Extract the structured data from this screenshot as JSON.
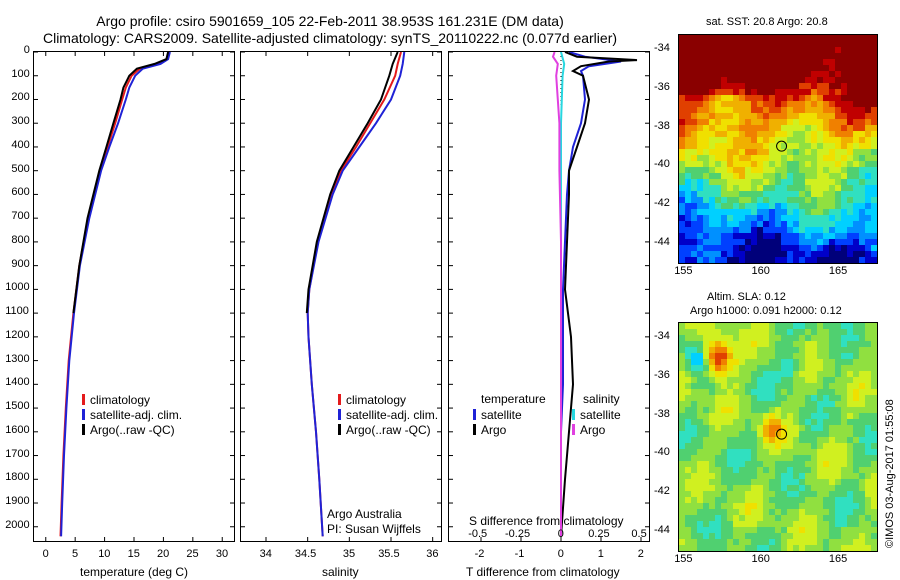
{
  "titles": {
    "line1": "Argo profile: csiro 5901659_105 22-Feb-2011 38.953S 161.231E (DM data)",
    "line2": "Climatology: CARS2009. Satellite-adjusted climatology: synTS_20110222.nc (0.077d earlier)"
  },
  "depth_ticks": [
    "0",
    "100",
    "200",
    "300",
    "400",
    "500",
    "600",
    "700",
    "800",
    "900",
    "1000",
    "1100",
    "1200",
    "1300",
    "1400",
    "1500",
    "1600",
    "1700",
    "1800",
    "1900",
    "2000"
  ],
  "colors": {
    "climatology": "#e41a1c",
    "satellite": "#1f22d6",
    "argo": "#000000",
    "sal_sat": "#27d7e0",
    "sal_argo": "#e040e0"
  },
  "chart_data": [
    {
      "type": "line",
      "xlabel": "temperature (deg C)",
      "xlim": [
        -2,
        32
      ],
      "ylim": [
        2060,
        0
      ],
      "xticks": [
        "0",
        "5",
        "10",
        "15",
        "20",
        "25",
        "30"
      ],
      "legend": {
        "items": [
          "climatology",
          "satellite-adj. clim.",
          "Argo(..raw -QC)"
        ],
        "placement": "lower-left"
      },
      "series": [
        {
          "name": "climatology",
          "depth": [
            0,
            30,
            50,
            70,
            100,
            150,
            200,
            300,
            400,
            500,
            700,
            900,
            1100,
            1300,
            1500,
            1700,
            1900,
            2040
          ],
          "values": [
            21.0,
            20.6,
            19.2,
            16.0,
            14.6,
            13.6,
            13.0,
            11.8,
            10.5,
            9.2,
            7.2,
            5.7,
            4.7,
            3.9,
            3.4,
            3.0,
            2.7,
            2.5
          ]
        },
        {
          "name": "satellite-adj. clim.",
          "depth": [
            0,
            30,
            50,
            70,
            100,
            150,
            200,
            300,
            400,
            500,
            700,
            900,
            1100,
            1300,
            1500,
            1700,
            1900,
            2040
          ],
          "values": [
            21.1,
            20.8,
            19.5,
            16.5,
            15.2,
            14.2,
            13.6,
            12.3,
            10.8,
            9.4,
            7.4,
            5.8,
            4.8,
            4.0,
            3.5,
            3.1,
            2.8,
            2.6
          ]
        },
        {
          "name": "Argo(..raw -QC)",
          "depth": [
            0,
            30,
            50,
            70,
            100,
            150,
            200,
            300,
            400,
            500,
            700,
            900,
            1100
          ],
          "values": [
            20.8,
            20.5,
            18.5,
            15.5,
            14.2,
            13.2,
            12.7,
            11.5,
            10.3,
            9.1,
            7.1,
            5.7,
            4.7
          ]
        }
      ]
    },
    {
      "type": "line",
      "xlabel": "salinity",
      "xlim": [
        33.7,
        36.1
      ],
      "ylim": [
        2060,
        0
      ],
      "xticks": [
        "34",
        "34.5",
        "35",
        "35.5",
        "36"
      ],
      "legend": {
        "items": [
          "climatology",
          "satellite-adj. clim.",
          "Argo(..raw -QC)"
        ],
        "placement": "lower-right"
      },
      "annotation": [
        "Argo Australia",
        "PI: Susan Wijffels"
      ],
      "series": [
        {
          "name": "climatology",
          "depth": [
            0,
            50,
            100,
            200,
            300,
            400,
            500,
            600,
            800,
            1000,
            1100,
            1200,
            1400,
            1600,
            1800,
            2040
          ],
          "values": [
            35.62,
            35.58,
            35.55,
            35.42,
            35.25,
            35.08,
            34.9,
            34.78,
            34.62,
            34.52,
            34.5,
            34.51,
            34.55,
            34.6,
            34.64,
            34.68
          ]
        },
        {
          "name": "satellite-adj. clim.",
          "depth": [
            0,
            50,
            100,
            200,
            300,
            400,
            500,
            600,
            800,
            1000,
            1100,
            1200,
            1400,
            1600,
            1800,
            2040
          ],
          "values": [
            35.66,
            35.64,
            35.61,
            35.5,
            35.32,
            35.12,
            34.92,
            34.8,
            34.63,
            34.52,
            34.5,
            34.51,
            34.55,
            34.6,
            34.64,
            34.68
          ]
        },
        {
          "name": "Argo(..raw -QC)",
          "depth": [
            0,
            50,
            100,
            200,
            300,
            400,
            500,
            600,
            800,
            1000,
            1100
          ],
          "values": [
            35.58,
            35.52,
            35.48,
            35.38,
            35.22,
            35.05,
            34.88,
            34.77,
            34.61,
            34.51,
            34.49
          ]
        }
      ]
    },
    {
      "type": "line",
      "xlabel": "T difference from climatology",
      "xlabel_top": "S difference from climatology",
      "xlim": [
        -2.8,
        2.2
      ],
      "ylim": [
        2060,
        0
      ],
      "xticks": [
        "-2",
        "-1",
        "0",
        "1",
        "2"
      ],
      "top_ticks": [
        "-0.5",
        "-0.25",
        "0",
        "0.25",
        "0.5"
      ],
      "legend": {
        "left_title": "temperature",
        "right_title": "salinity",
        "items": [
          "satellite",
          "Argo",
          "satellite",
          "Argo"
        ],
        "placement": "lower"
      },
      "series": [
        {
          "name": "satellite",
          "group": "temperature",
          "depth": [
            0,
            20,
            40,
            60,
            80,
            100,
            200,
            300,
            400,
            500,
            600,
            800,
            1000,
            1200,
            1400,
            1600,
            1800,
            2040
          ],
          "values": [
            0.2,
            0.6,
            1.5,
            0.7,
            0.5,
            0.55,
            0.6,
            0.5,
            0.3,
            0.2,
            0.15,
            0.1,
            0.05,
            0.05,
            0.05,
            0.0,
            0.0,
            0.0
          ]
        },
        {
          "name": "Argo",
          "group": "temperature",
          "depth": [
            0,
            20,
            34,
            40,
            60,
            80,
            100,
            200,
            300,
            400,
            500,
            600,
            800,
            1000,
            1200,
            1400,
            1600,
            1800,
            2040
          ],
          "values": [
            0.1,
            0.4,
            1.9,
            1.2,
            0.5,
            0.3,
            0.55,
            0.7,
            0.6,
            0.4,
            0.2,
            0.2,
            0.15,
            0.1,
            0.25,
            0.3,
            0.2,
            0.1,
            0.0
          ]
        },
        {
          "name": "satellite",
          "group": "salinity",
          "depth": [
            0,
            50,
            100,
            300,
            500,
            800,
            1000,
            1200,
            1500,
            1800,
            2040
          ],
          "values": [
            0.0,
            0.02,
            0.01,
            0.0,
            0.0,
            0.0,
            0.0,
            0.0,
            0.0,
            0.0,
            0.0
          ]
        },
        {
          "name": "Argo",
          "group": "salinity",
          "depth": [
            0,
            20,
            50,
            100,
            200,
            300,
            500,
            800,
            1000,
            1200,
            1400,
            1600,
            1800,
            2040
          ],
          "values": [
            -0.04,
            -0.05,
            -0.02,
            -0.03,
            -0.02,
            -0.01,
            -0.01,
            0.0,
            0.0,
            0.0,
            0.0,
            0.0,
            0.0,
            0.0
          ]
        }
      ]
    }
  ],
  "maps": {
    "sst": {
      "title": "sat. SST: 20.8  Argo: 20.8",
      "lat_ticks": [
        "-34",
        "-36",
        "-38",
        "-40",
        "-42",
        "-44"
      ],
      "lon_ticks": [
        "155",
        "160",
        "165"
      ],
      "argo_lon": 161.231,
      "argo_lat": -38.953
    },
    "sla": {
      "title_line1": "Altim. SLA: 0.12",
      "title_line2": "Argo h1000: 0.091 h2000: 0.12",
      "lat_ticks": [
        "-34",
        "-36",
        "-38",
        "-40",
        "-42",
        "-44"
      ],
      "lon_ticks": [
        "155",
        "160",
        "165"
      ],
      "argo_lon": 161.231,
      "argo_lat": -38.953
    }
  },
  "credit": "©IMOS 03-Aug-2017 01:55:08"
}
